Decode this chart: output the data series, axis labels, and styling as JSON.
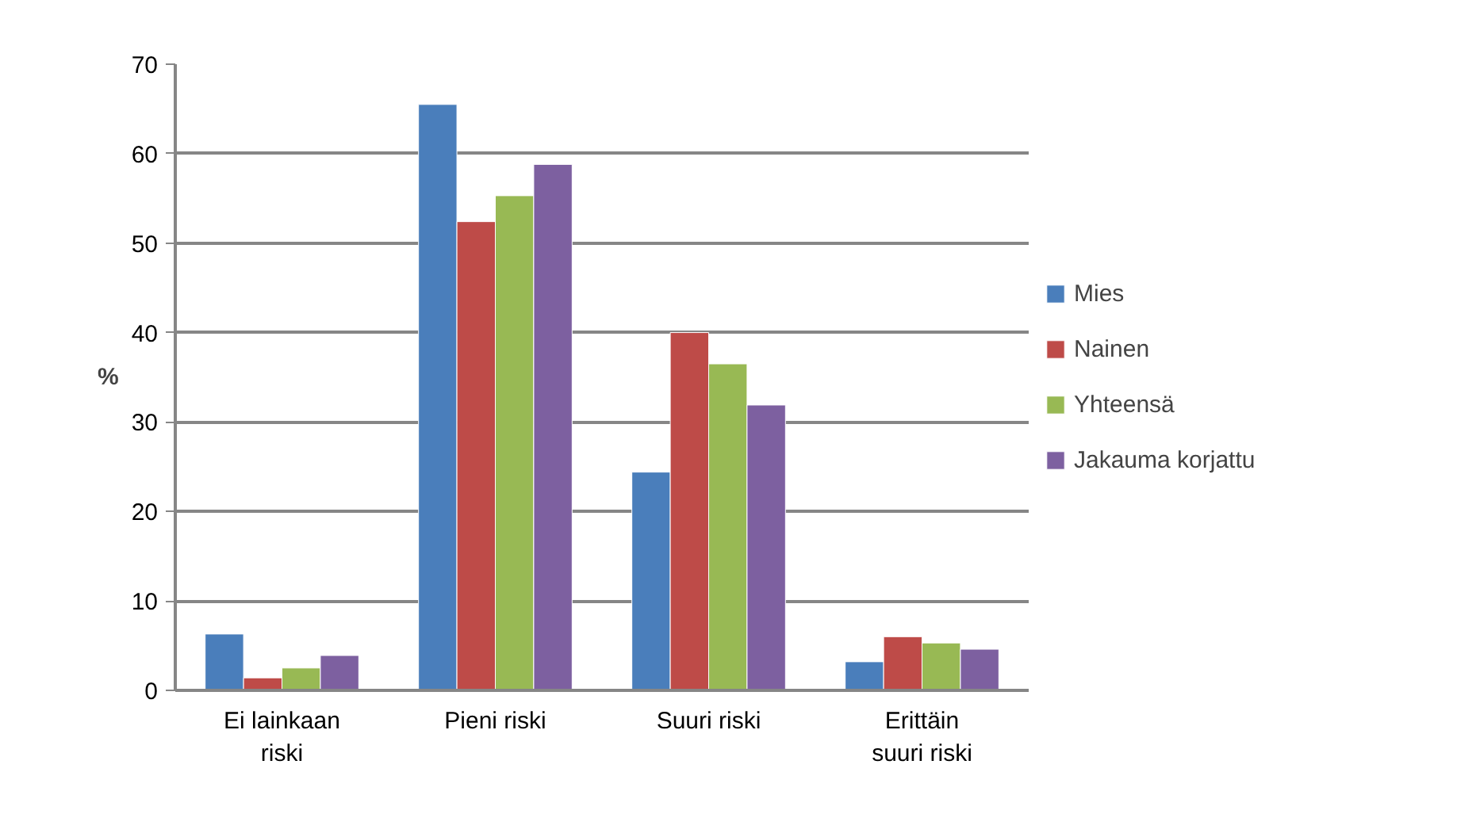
{
  "chart_data": {
    "type": "bar",
    "ylabel": "%",
    "categories": [
      "Ei lainkaan riski",
      "Pieni riski",
      "Suuri riski",
      "Erittäin suuri riski"
    ],
    "series": [
      {
        "name": "Mies",
        "color": "#4a7ebb",
        "values": [
          6.3,
          65.5,
          24.4,
          3.2
        ]
      },
      {
        "name": "Nainen",
        "color": "#be4b48",
        "values": [
          1.4,
          52.4,
          40.0,
          6.0
        ]
      },
      {
        "name": "Yhteensä",
        "color": "#98b954",
        "values": [
          2.5,
          55.3,
          36.5,
          5.3
        ]
      },
      {
        "name": "Jakauma korjattu",
        "color": "#7d60a0",
        "values": [
          3.9,
          58.8,
          31.9,
          4.6
        ]
      }
    ],
    "ylim": [
      0,
      70
    ],
    "yticks": [
      0,
      10,
      20,
      30,
      40,
      50,
      60,
      70
    ],
    "grid": "y",
    "legend": "right"
  }
}
